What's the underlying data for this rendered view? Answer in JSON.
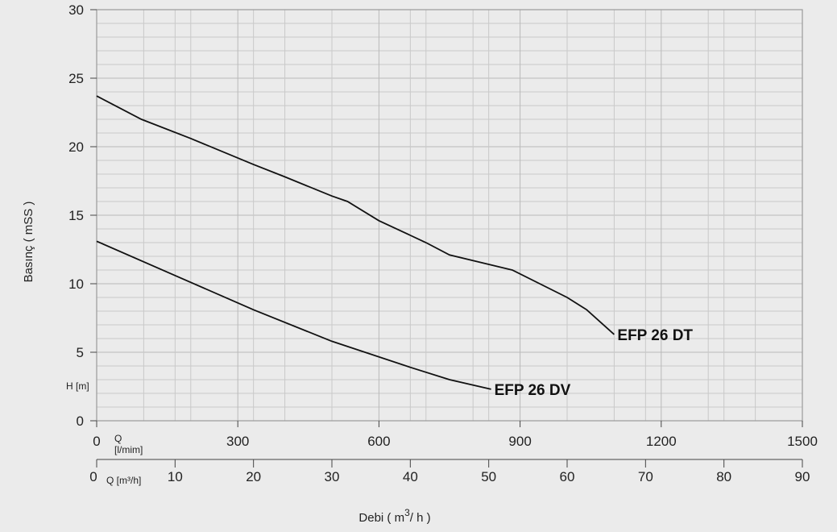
{
  "chart_data": {
    "type": "line",
    "title": "",
    "ylabel": "Basınç ( mSS )",
    "xlabel": "Debi ( m3/ h )",
    "ylim": [
      0,
      30
    ],
    "y_ticks": [
      "0",
      "5",
      "10",
      "15",
      "20",
      "25",
      "30"
    ],
    "y_unit_label": "H [m]",
    "x_axis_primary": {
      "label": "Q [l/mim]",
      "range": [
        0,
        1500
      ],
      "ticks": [
        "0",
        "300",
        "600",
        "900",
        "1200",
        "1500"
      ]
    },
    "x_axis_secondary": {
      "label": "Q [m³/h]",
      "range": [
        0,
        90
      ],
      "ticks": [
        "0",
        "10",
        "20",
        "30",
        "40",
        "50",
        "60",
        "70",
        "80",
        "90"
      ]
    },
    "xlabel_parts": {
      "prefix": "Debi ( m",
      "sup": "3",
      "suffix": "/ h )"
    },
    "grid": true,
    "series": [
      {
        "name": "EFP 26 DT",
        "x": [
          0,
          5.7,
          12,
          20,
          24,
          30,
          32,
          36,
          42,
          45,
          53,
          60,
          62.5,
          66
        ],
        "y": [
          23.7,
          22.0,
          20.6,
          18.7,
          17.8,
          16.4,
          16.0,
          14.6,
          13.0,
          12.1,
          11.0,
          9.0,
          8.1,
          6.3
        ]
      },
      {
        "name": "EFP 26 DV",
        "x": [
          0,
          10,
          20,
          30,
          40,
          45,
          50.3
        ],
        "y": [
          13.1,
          10.6,
          8.1,
          5.8,
          3.9,
          3.0,
          2.3
        ]
      }
    ]
  }
}
